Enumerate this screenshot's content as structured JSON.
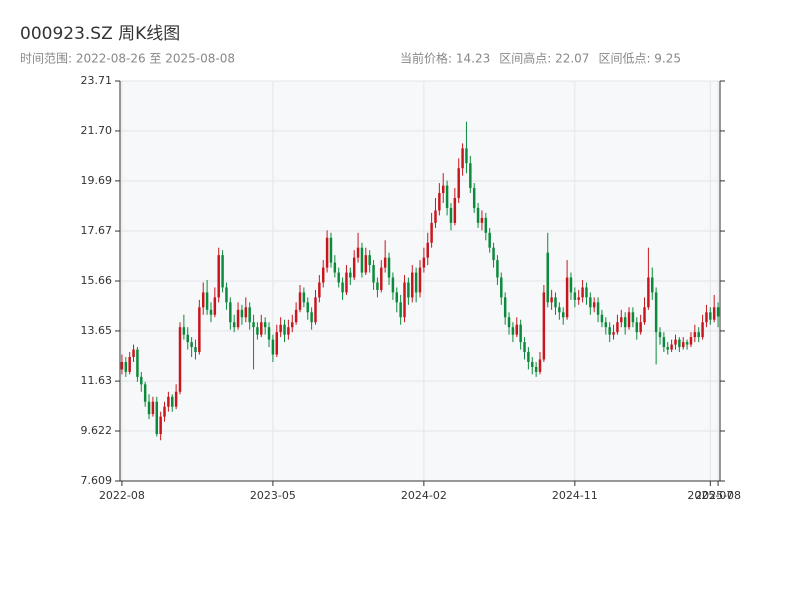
{
  "chart_data": {
    "type": "candlestick",
    "title": "000923.SZ 周K线图",
    "subtitle": "时间范围: 2022-08-26 至 2025-08-08",
    "stats": [
      "当前价格: 14.23",
      "区间高点: 22.07",
      "区间低点: 9.25"
    ],
    "up_color": "#c8161d",
    "down_color": "#0b8a3b",
    "grid": true,
    "ylim": [
      7.609,
      23.71
    ],
    "yticks": [
      7.609,
      9.622,
      11.63,
      13.65,
      15.66,
      17.67,
      19.69,
      {
        "value": 21.7,
        "label": "21.70"
      },
      23.71
    ],
    "xticks": [
      {
        "value": "2022-08-26",
        "label": "2022-08"
      },
      {
        "value": "2023-05-26",
        "label": "2023-05"
      },
      {
        "value": "2024-02-23",
        "label": "2024-02"
      },
      {
        "value": "2024-11-22",
        "label": "2024-11"
      },
      {
        "value": "2025-07-25",
        "label": "2025-07"
      },
      {
        "value": "2025-08-08",
        "label": "2025-08"
      }
    ],
    "ohlc_order": [
      "open",
      "high",
      "low",
      "close"
    ],
    "categories": [
      "2022-08-26",
      "2022-09-02",
      "2022-09-09",
      "2022-09-16",
      "2022-09-23",
      "2022-09-30",
      "2022-10-07",
      "2022-10-14",
      "2022-10-21",
      "2022-10-28",
      "2022-11-04",
      "2022-11-11",
      "2022-11-18",
      "2022-11-25",
      "2022-12-02",
      "2022-12-09",
      "2022-12-16",
      "2022-12-23",
      "2022-12-30",
      "2023-01-06",
      "2023-01-13",
      "2023-01-20",
      "2023-01-27",
      "2023-02-03",
      "2023-02-10",
      "2023-02-17",
      "2023-02-24",
      "2023-03-03",
      "2023-03-10",
      "2023-03-17",
      "2023-03-24",
      "2023-03-31",
      "2023-04-07",
      "2023-04-14",
      "2023-04-21",
      "2023-04-28",
      "2023-05-05",
      "2023-05-12",
      "2023-05-19",
      "2023-05-26",
      "2023-06-02",
      "2023-06-09",
      "2023-06-16",
      "2023-06-23",
      "2023-06-30",
      "2023-07-07",
      "2023-07-14",
      "2023-07-21",
      "2023-07-28",
      "2023-08-04",
      "2023-08-11",
      "2023-08-18",
      "2023-08-25",
      "2023-09-01",
      "2023-09-08",
      "2023-09-15",
      "2023-09-22",
      "2023-09-29",
      "2023-10-06",
      "2023-10-13",
      "2023-10-20",
      "2023-10-27",
      "2023-11-03",
      "2023-11-10",
      "2023-11-17",
      "2023-11-24",
      "2023-12-01",
      "2023-12-08",
      "2023-12-15",
      "2023-12-22",
      "2023-12-29",
      "2024-01-05",
      "2024-01-12",
      "2024-01-19",
      "2024-01-26",
      "2024-02-02",
      "2024-02-09",
      "2024-02-16",
      "2024-02-23",
      "2024-03-01",
      "2024-03-08",
      "2024-03-15",
      "2024-03-22",
      "2024-03-29",
      "2024-04-05",
      "2024-04-12",
      "2024-04-19",
      "2024-04-26",
      "2024-05-03",
      "2024-05-10",
      "2024-05-17",
      "2024-05-24",
      "2024-05-31",
      "2024-06-07",
      "2024-06-14",
      "2024-06-21",
      "2024-06-28",
      "2024-07-05",
      "2024-07-12",
      "2024-07-19",
      "2024-07-26",
      "2024-08-02",
      "2024-08-09",
      "2024-08-16",
      "2024-08-23",
      "2024-08-30",
      "2024-09-06",
      "2024-09-13",
      "2024-09-20",
      "2024-09-27",
      "2024-10-04",
      "2024-10-11",
      "2024-10-18",
      "2024-10-25",
      "2024-11-01",
      "2024-11-08",
      "2024-11-15",
      "2024-11-22",
      "2024-11-29",
      "2024-12-06",
      "2024-12-13",
      "2024-12-20",
      "2024-12-27",
      "2025-01-03",
      "2025-01-10",
      "2025-01-17",
      "2025-01-24",
      "2025-01-31",
      "2025-02-07",
      "2025-02-14",
      "2025-02-21",
      "2025-02-28",
      "2025-03-07",
      "2025-03-14",
      "2025-03-21",
      "2025-03-28",
      "2025-04-04",
      "2025-04-11",
      "2025-04-18",
      "2025-04-25",
      "2025-05-02",
      "2025-05-09",
      "2025-05-16",
      "2025-05-23",
      "2025-05-30",
      "2025-06-06",
      "2025-06-13",
      "2025-06-20",
      "2025-06-27",
      "2025-07-04",
      "2025-07-11",
      "2025-07-18",
      "2025-07-25",
      "2025-08-01",
      "2025-08-08"
    ],
    "ohlc": [
      [
        12.1,
        12.7,
        11.9,
        12.4
      ],
      [
        12.4,
        12.6,
        11.8,
        12.0
      ],
      [
        12.0,
        12.8,
        11.9,
        12.6
      ],
      [
        12.6,
        13.1,
        12.4,
        12.9
      ],
      [
        12.9,
        13.0,
        11.6,
        11.8
      ],
      [
        11.8,
        12.0,
        11.2,
        11.5
      ],
      [
        11.5,
        11.6,
        10.6,
        10.8
      ],
      [
        10.8,
        11.1,
        10.1,
        10.3
      ],
      [
        10.3,
        11.0,
        10.2,
        10.8
      ],
      [
        10.8,
        11.0,
        9.4,
        9.5
      ],
      [
        9.5,
        10.4,
        9.25,
        10.2
      ],
      [
        10.2,
        10.8,
        10.0,
        10.6
      ],
      [
        10.6,
        11.2,
        10.4,
        11.0
      ],
      [
        11.0,
        11.1,
        10.4,
        10.6
      ],
      [
        10.6,
        11.5,
        10.5,
        11.2
      ],
      [
        11.2,
        14.0,
        11.1,
        13.8
      ],
      [
        13.8,
        14.3,
        13.3,
        13.5
      ],
      [
        13.5,
        13.8,
        12.9,
        13.2
      ],
      [
        13.2,
        13.4,
        12.6,
        13.0
      ],
      [
        13.0,
        13.3,
        12.5,
        12.8
      ],
      [
        12.8,
        14.9,
        12.7,
        14.6
      ],
      [
        14.6,
        15.6,
        14.3,
        15.2
      ],
      [
        15.2,
        15.7,
        14.3,
        14.5
      ],
      [
        14.5,
        14.8,
        14.0,
        14.3
      ],
      [
        14.3,
        15.4,
        14.2,
        15.0
      ],
      [
        15.0,
        17.0,
        14.8,
        16.7
      ],
      [
        16.7,
        16.9,
        15.2,
        15.4
      ],
      [
        15.4,
        15.6,
        14.5,
        14.8
      ],
      [
        14.8,
        15.0,
        13.7,
        14.0
      ],
      [
        14.0,
        14.3,
        13.6,
        13.8
      ],
      [
        13.8,
        14.8,
        13.7,
        14.5
      ],
      [
        14.5,
        14.7,
        13.9,
        14.2
      ],
      [
        14.2,
        15.0,
        14.0,
        14.6
      ],
      [
        14.6,
        14.8,
        13.7,
        14.0
      ],
      [
        14.0,
        14.3,
        12.1,
        13.8
      ],
      [
        13.8,
        14.0,
        13.3,
        13.5
      ],
      [
        13.5,
        14.3,
        13.4,
        14.0
      ],
      [
        14.0,
        14.2,
        13.5,
        13.8
      ],
      [
        13.8,
        14.0,
        13.0,
        13.3
      ],
      [
        13.3,
        13.5,
        12.4,
        12.7
      ],
      [
        12.7,
        13.9,
        12.6,
        13.6
      ],
      [
        13.6,
        14.2,
        13.4,
        13.9
      ],
      [
        13.9,
        14.1,
        13.2,
        13.5
      ],
      [
        13.5,
        14.1,
        13.3,
        13.8
      ],
      [
        13.8,
        14.3,
        13.6,
        14.0
      ],
      [
        14.0,
        14.8,
        13.9,
        14.5
      ],
      [
        14.5,
        15.5,
        14.4,
        15.2
      ],
      [
        15.2,
        15.4,
        14.6,
        14.8
      ],
      [
        14.8,
        15.0,
        14.1,
        14.4
      ],
      [
        14.4,
        14.6,
        13.7,
        14.0
      ],
      [
        14.0,
        15.3,
        13.9,
        15.0
      ],
      [
        15.0,
        15.9,
        14.8,
        15.6
      ],
      [
        15.6,
        16.5,
        15.4,
        16.2
      ],
      [
        16.2,
        17.7,
        16.0,
        17.4
      ],
      [
        17.4,
        17.6,
        16.2,
        16.4
      ],
      [
        16.4,
        16.7,
        15.8,
        16.0
      ],
      [
        16.0,
        16.2,
        15.4,
        15.6
      ],
      [
        15.6,
        15.8,
        14.9,
        15.2
      ],
      [
        15.2,
        16.3,
        15.1,
        16.0
      ],
      [
        16.0,
        16.2,
        15.5,
        15.8
      ],
      [
        15.8,
        16.9,
        15.7,
        16.6
      ],
      [
        16.6,
        17.6,
        16.4,
        17.0
      ],
      [
        17.0,
        17.2,
        15.8,
        16.0
      ],
      [
        16.0,
        17.0,
        15.9,
        16.7
      ],
      [
        16.7,
        16.9,
        16.0,
        16.3
      ],
      [
        16.3,
        16.5,
        15.3,
        15.6
      ],
      [
        15.6,
        15.8,
        15.0,
        15.3
      ],
      [
        15.3,
        16.5,
        15.2,
        16.2
      ],
      [
        16.2,
        17.3,
        16.0,
        16.6
      ],
      [
        16.6,
        16.8,
        15.5,
        15.8
      ],
      [
        15.8,
        16.0,
        14.9,
        15.2
      ],
      [
        15.2,
        15.4,
        14.4,
        14.8
      ],
      [
        14.8,
        15.1,
        13.9,
        14.2
      ],
      [
        14.2,
        15.9,
        14.0,
        15.6
      ],
      [
        15.6,
        15.8,
        14.7,
        15.0
      ],
      [
        15.0,
        16.3,
        14.8,
        16.0
      ],
      [
        16.0,
        16.2,
        14.8,
        15.2
      ],
      [
        15.2,
        16.5,
        15.0,
        16.2
      ],
      [
        16.2,
        17.0,
        16.0,
        16.6
      ],
      [
        16.6,
        17.6,
        16.3,
        17.2
      ],
      [
        17.2,
        18.4,
        17.0,
        18.0
      ],
      [
        18.0,
        19.0,
        17.8,
        18.5
      ],
      [
        18.5,
        19.6,
        18.3,
        19.2
      ],
      [
        19.2,
        20.0,
        18.8,
        19.5
      ],
      [
        19.5,
        19.7,
        18.3,
        18.6
      ],
      [
        18.6,
        18.8,
        17.7,
        18.0
      ],
      [
        18.0,
        19.4,
        17.9,
        19.0
      ],
      [
        19.0,
        20.6,
        18.8,
        20.2
      ],
      [
        20.2,
        21.2,
        19.9,
        21.0
      ],
      [
        21.0,
        22.07,
        20.0,
        20.4
      ],
      [
        20.4,
        20.7,
        19.2,
        19.4
      ],
      [
        19.4,
        19.6,
        18.4,
        18.6
      ],
      [
        18.6,
        18.8,
        17.8,
        18.0
      ],
      [
        18.0,
        18.5,
        17.7,
        18.2
      ],
      [
        18.2,
        18.4,
        17.3,
        17.6
      ],
      [
        17.6,
        17.8,
        16.8,
        17.0
      ],
      [
        17.0,
        17.2,
        16.2,
        16.5
      ],
      [
        16.5,
        16.7,
        15.5,
        15.8
      ],
      [
        15.8,
        16.0,
        14.7,
        15.0
      ],
      [
        15.0,
        15.2,
        13.9,
        14.2
      ],
      [
        14.2,
        14.4,
        13.5,
        13.8
      ],
      [
        13.8,
        14.0,
        13.2,
        13.5
      ],
      [
        13.5,
        14.2,
        13.4,
        13.9
      ],
      [
        13.9,
        14.1,
        12.9,
        13.2
      ],
      [
        13.2,
        13.4,
        12.5,
        12.8
      ],
      [
        12.8,
        13.0,
        12.1,
        12.4
      ],
      [
        12.4,
        12.6,
        11.9,
        12.2
      ],
      [
        12.2,
        12.4,
        11.8,
        12.0
      ],
      [
        12.0,
        12.8,
        11.9,
        12.5
      ],
      [
        12.5,
        15.5,
        12.4,
        15.2
      ],
      [
        16.8,
        17.6,
        14.6,
        14.8
      ],
      [
        14.8,
        15.3,
        14.5,
        15.0
      ],
      [
        15.0,
        15.2,
        14.3,
        14.6
      ],
      [
        14.6,
        14.8,
        14.1,
        14.4
      ],
      [
        14.4,
        14.6,
        13.9,
        14.2
      ],
      [
        14.2,
        16.5,
        14.1,
        15.8
      ],
      [
        15.8,
        16.0,
        14.9,
        15.2
      ],
      [
        15.2,
        15.4,
        14.6,
        14.9
      ],
      [
        14.9,
        15.3,
        14.7,
        15.0
      ],
      [
        15.0,
        15.7,
        14.8,
        15.4
      ],
      [
        15.4,
        15.6,
        14.7,
        15.0
      ],
      [
        15.0,
        15.2,
        14.3,
        14.6
      ],
      [
        14.6,
        15.0,
        14.4,
        14.8
      ],
      [
        14.8,
        15.0,
        14.0,
        14.3
      ],
      [
        14.3,
        14.5,
        13.8,
        14.0
      ],
      [
        14.0,
        14.2,
        13.5,
        13.8
      ],
      [
        13.8,
        14.0,
        13.2,
        13.5
      ],
      [
        13.5,
        13.9,
        13.3,
        13.6
      ],
      [
        13.6,
        14.3,
        13.5,
        14.0
      ],
      [
        14.0,
        14.5,
        13.8,
        14.2
      ],
      [
        14.2,
        14.4,
        13.5,
        13.8
      ],
      [
        13.8,
        14.6,
        13.7,
        14.4
      ],
      [
        14.4,
        14.6,
        13.8,
        14.0
      ],
      [
        14.0,
        14.2,
        13.3,
        13.6
      ],
      [
        13.6,
        14.3,
        13.5,
        14.0
      ],
      [
        14.0,
        15.0,
        13.9,
        14.6
      ],
      [
        14.6,
        17.0,
        14.5,
        15.8
      ],
      [
        15.8,
        16.2,
        14.9,
        15.2
      ],
      [
        15.2,
        15.4,
        12.3,
        13.6
      ],
      [
        13.6,
        13.8,
        13.1,
        13.4
      ],
      [
        13.4,
        13.6,
        12.8,
        13.0
      ],
      [
        13.0,
        13.2,
        12.7,
        12.9
      ],
      [
        12.9,
        13.3,
        12.8,
        13.1
      ],
      [
        13.1,
        13.5,
        12.9,
        13.3
      ],
      [
        13.3,
        13.4,
        12.8,
        13.0
      ],
      [
        13.0,
        13.4,
        12.9,
        13.2
      ],
      [
        13.2,
        13.3,
        12.9,
        13.1
      ],
      [
        13.1,
        13.6,
        13.0,
        13.4
      ],
      [
        13.4,
        13.9,
        13.2,
        13.6
      ],
      [
        13.6,
        13.8,
        13.2,
        13.4
      ],
      [
        13.4,
        14.3,
        13.3,
        14.0
      ],
      [
        14.0,
        14.7,
        13.8,
        14.4
      ],
      [
        14.4,
        14.6,
        13.9,
        14.1
      ],
      [
        14.1,
        15.1,
        14.0,
        14.6
      ],
      [
        14.6,
        14.8,
        13.8,
        14.23
      ]
    ]
  }
}
